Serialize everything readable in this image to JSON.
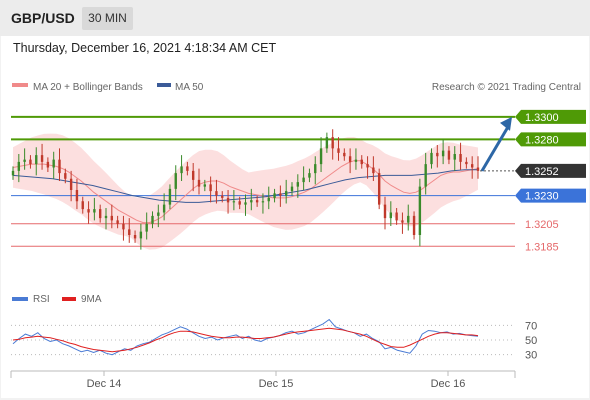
{
  "header": {
    "pair": "GBP/USD",
    "timeframe": "30 MIN"
  },
  "datetime": "Thursday, December 16, 2021 4:18:34 AM CET",
  "credit": "Research © 2021 Trading Central",
  "legend": {
    "bollinger": "MA 20 + Bollinger Bands",
    "ma50": "MA 50",
    "rsi": "RSI",
    "rsi_ma": "9MA"
  },
  "colors": {
    "green": "#4f9a06",
    "blue": "#3b73d9",
    "red": "#e5696b",
    "dark": "#333333",
    "arrow": "#2d67a6",
    "band": "#fcd9d9",
    "ma20": "#f08a8a",
    "ma50": "#3b5b98",
    "rsi": "#4a7bd4",
    "rsi_ma": "#e02020",
    "candle_up": "#3a8a2a",
    "candle_down": "#c0392b"
  },
  "chart_data": [
    {
      "type": "candlestick",
      "title": "GBP/USD",
      "timeframe": "30 MIN",
      "ylim": [
        1.3155,
        1.3315
      ],
      "x_ticks": [
        "Dec 14",
        "Dec 15",
        "Dec 16"
      ],
      "levels": [
        {
          "value": 1.33,
          "label": "1.3300",
          "kind": "resistance",
          "color": "#4f9a06"
        },
        {
          "value": 1.328,
          "label": "1.3280",
          "kind": "resistance",
          "color": "#4f9a06"
        },
        {
          "value": 1.3252,
          "label": "1.3252",
          "kind": "last_price",
          "color": "#333333"
        },
        {
          "value": 1.323,
          "label": "1.3230",
          "kind": "pivot",
          "color": "#3b73d9"
        },
        {
          "value": 1.3205,
          "label": "1.3205",
          "kind": "support",
          "color": "#e5696b"
        },
        {
          "value": 1.3185,
          "label": "1.3185",
          "kind": "support",
          "color": "#e5696b"
        }
      ],
      "forecast_to": 1.33,
      "close": [
        1.3252,
        1.326,
        1.3262,
        1.3258,
        1.3266,
        1.326,
        1.3255,
        1.3262,
        1.325,
        1.3245,
        1.3235,
        1.3225,
        1.3218,
        1.3215,
        1.3218,
        1.321,
        1.3212,
        1.3208,
        1.3205,
        1.32,
        1.3195,
        1.3192,
        1.3198,
        1.3205,
        1.3212,
        1.3215,
        1.3222,
        1.3236,
        1.325,
        1.3256,
        1.3252,
        1.3244,
        1.3238,
        1.324,
        1.3234,
        1.323,
        1.3228,
        1.3224,
        1.3225,
        1.3222,
        1.3224,
        1.3226,
        1.3224,
        1.3225,
        1.3228,
        1.3232,
        1.323,
        1.3234,
        1.3238,
        1.3242,
        1.3246,
        1.325,
        1.3258,
        1.3272,
        1.3282,
        1.3272,
        1.3268,
        1.3265,
        1.326,
        1.3262,
        1.3258,
        1.3255,
        1.325,
        1.3222,
        1.321,
        1.3215,
        1.3208,
        1.3206,
        1.3212,
        1.3195,
        1.3238,
        1.3258,
        1.3268,
        1.3265,
        1.327,
        1.3262,
        1.3267,
        1.326,
        1.3258,
        1.3255,
        1.3252
      ],
      "ma20": [
        1.3255,
        1.3256,
        1.3257,
        1.3258,
        1.3258,
        1.3258,
        1.3257,
        1.3256,
        1.3254,
        1.3251,
        1.3247,
        1.3243,
        1.3238,
        1.3233,
        1.3229,
        1.3225,
        1.3221,
        1.3217,
        1.3214,
        1.3211,
        1.3208,
        1.3206,
        1.3206,
        1.3208,
        1.3211,
        1.3216,
        1.3221,
        1.3226,
        1.3231,
        1.3236,
        1.324,
        1.3242,
        1.3243,
        1.3243,
        1.3241,
        1.3238,
        1.3236,
        1.3234,
        1.3232,
        1.3231,
        1.323,
        1.3229,
        1.3228,
        1.3228,
        1.3228,
        1.3229,
        1.3231,
        1.3233,
        1.3236,
        1.324,
        1.3244,
        1.3248,
        1.3252,
        1.3256,
        1.3259,
        1.3261,
        1.3261,
        1.3258,
        1.3254,
        1.3249,
        1.3243,
        1.3239,
        1.3236,
        1.3233,
        1.3232,
        1.3233,
        1.3236,
        1.324,
        1.3244,
        1.3248,
        1.325,
        1.3251,
        1.3251,
        1.3252,
        1.3253,
        1.3254
      ],
      "ma50": [
        1.3248,
        1.3247,
        1.3246,
        1.3245,
        1.3243,
        1.3241,
        1.3239,
        1.3236,
        1.3233,
        1.323,
        1.3228,
        1.3226,
        1.3225,
        1.3224,
        1.3224,
        1.3225,
        1.3226,
        1.3227,
        1.3228,
        1.3229,
        1.3231,
        1.3233,
        1.3235,
        1.3238,
        1.3241,
        1.3244,
        1.3246,
        1.3247,
        1.3248,
        1.3248,
        1.3248,
        1.3249,
        1.325,
        1.3252,
        1.3253,
        1.3253
      ]
    },
    {
      "type": "line",
      "title": "RSI",
      "ylim": [
        20,
        80
      ],
      "y_ticks": [
        70,
        50,
        30
      ],
      "x_ticks": [
        "Dec 14",
        "Dec 15",
        "Dec 16"
      ],
      "series": [
        {
          "name": "RSI",
          "values": [
            45,
            52,
            58,
            55,
            60,
            52,
            48,
            50,
            45,
            42,
            38,
            34,
            36,
            33,
            36,
            32,
            30,
            34,
            38,
            36,
            42,
            45,
            47,
            52,
            57,
            60,
            64,
            68,
            65,
            60,
            55,
            52,
            54,
            50,
            53,
            55,
            57,
            52,
            55,
            50,
            48,
            52,
            54,
            56,
            60,
            62,
            58,
            60,
            64,
            68,
            72,
            78,
            68,
            65,
            62,
            60,
            55,
            58,
            52,
            48,
            38,
            40,
            36,
            34,
            32,
            42,
            58,
            63,
            62,
            60,
            61,
            58,
            59,
            57,
            56,
            55
          ]
        },
        {
          "name": "9MA",
          "values": [
            50,
            51,
            53,
            54,
            55,
            54,
            53,
            51,
            49,
            46,
            44,
            41,
            39,
            37,
            36,
            35,
            34,
            35,
            36,
            38,
            40,
            43,
            46,
            50,
            53,
            57,
            60,
            62,
            62,
            61,
            59,
            57,
            55,
            54,
            53,
            53,
            54,
            54,
            53,
            52,
            52,
            53,
            54,
            56,
            58,
            60,
            61,
            62,
            63,
            64,
            65,
            66,
            65,
            64,
            62,
            60,
            58,
            55,
            51,
            47,
            44,
            41,
            40,
            40,
            43,
            47,
            51,
            55,
            58,
            60,
            60,
            59,
            58,
            57,
            57,
            56
          ]
        }
      ]
    }
  ]
}
